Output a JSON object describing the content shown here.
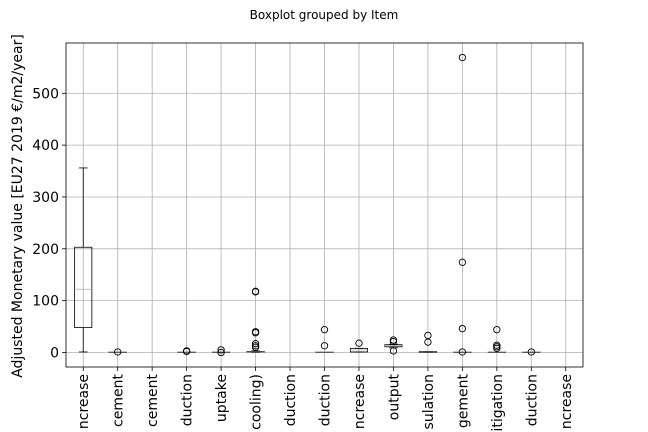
{
  "chart_data": {
    "type": "boxplot",
    "suptitle": "Boxplot grouped by Item",
    "ylabel": "Adjusted Monetary value [EU27 2019 €/m2/year]",
    "ylim": [
      -28,
      597
    ],
    "yticks": [
      0,
      100,
      200,
      300,
      400,
      500
    ],
    "grid": true,
    "median_color": "#b0b0b0",
    "categories": [
      "ncrease",
      "cement",
      "cement",
      "duction",
      "uptake",
      "cooling)",
      "duction",
      "duction",
      "ncrease",
      "output",
      "sulation",
      "gement",
      "itigation",
      "duction",
      "ncrease"
    ],
    "boxes": [
      {
        "q1": 48,
        "median": 122,
        "q3": 203,
        "whislo": 1,
        "whishi": 356,
        "fliers": []
      },
      {
        "q1": 1,
        "median": 1,
        "q3": 1,
        "whislo": 1,
        "whishi": 1,
        "fliers": [
          1
        ]
      },
      null,
      {
        "q1": 1,
        "median": 1,
        "q3": 1,
        "whislo": 1,
        "whishi": 1,
        "fliers": [
          2,
          3
        ]
      },
      {
        "q1": 1,
        "median": 1,
        "q3": 1,
        "whislo": 1,
        "whishi": 1,
        "fliers": [
          0,
          5
        ]
      },
      {
        "q1": 0.5,
        "median": 1,
        "q3": 2,
        "whislo": 0,
        "whishi": 3,
        "fliers": [
          10,
          13,
          17,
          38,
          40,
          117,
          118
        ]
      },
      null,
      {
        "q1": 1,
        "median": 1,
        "q3": 1,
        "whislo": 1,
        "whishi": 1,
        "fliers": [
          13,
          44
        ]
      },
      {
        "q1": 1,
        "median": 5,
        "q3": 8,
        "whislo": 1,
        "whishi": 8,
        "fliers": [
          18
        ]
      },
      {
        "q1": 11,
        "median": 13,
        "q3": 15,
        "whislo": 9,
        "whishi": 16,
        "fliers": [
          3,
          21,
          24
        ]
      },
      {
        "q1": 0,
        "median": 1,
        "q3": 2,
        "whislo": 0,
        "whishi": 2,
        "fliers": [
          20,
          33
        ]
      },
      {
        "q1": 1,
        "median": 1,
        "q3": 1,
        "whislo": 1,
        "whishi": 1,
        "fliers": [
          1,
          46,
          174,
          569
        ]
      },
      {
        "q1": 1,
        "median": 1,
        "q3": 1,
        "whislo": 1,
        "whishi": 1,
        "fliers": [
          8,
          11,
          14,
          44
        ]
      },
      {
        "q1": 1,
        "median": 1,
        "q3": 1,
        "whislo": 1,
        "whishi": 1,
        "fliers": [
          1
        ]
      },
      null
    ]
  }
}
